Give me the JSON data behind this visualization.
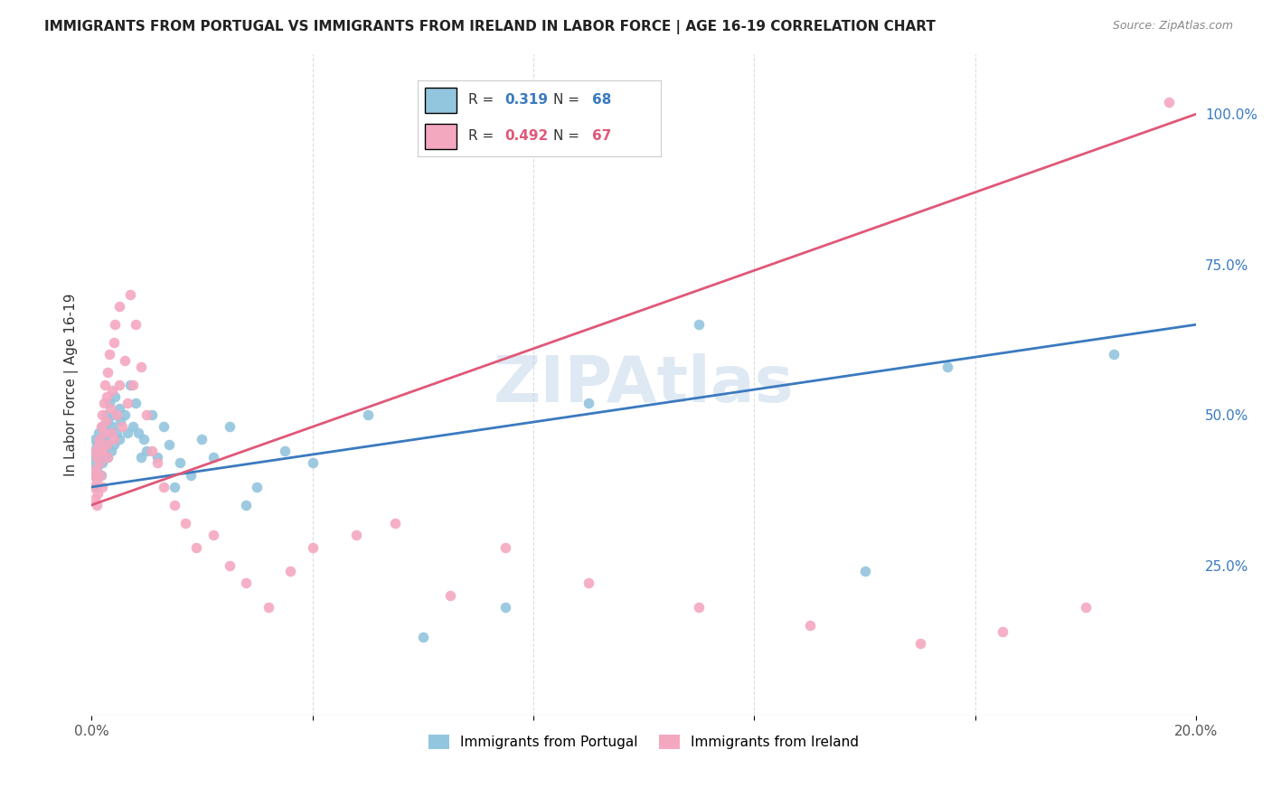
{
  "title": "IMMIGRANTS FROM PORTUGAL VS IMMIGRANTS FROM IRELAND IN LABOR FORCE | AGE 16-19 CORRELATION CHART",
  "source": "Source: ZipAtlas.com",
  "ylabel": "In Labor Force | Age 16-19",
  "xlim": [
    0.0,
    0.2
  ],
  "ylim": [
    0.0,
    1.1
  ],
  "portugal_color": "#92c5de",
  "ireland_color": "#f4a8c0",
  "portugal_line_color": "#3a7abf",
  "ireland_line_color": "#e05878",
  "R_portugal": 0.319,
  "N_portugal": 68,
  "R_ireland": 0.492,
  "N_ireland": 67,
  "watermark": "ZIPAtlas",
  "portugal_scatter_x": [
    0.0003,
    0.0005,
    0.0006,
    0.0007,
    0.0008,
    0.0009,
    0.001,
    0.001,
    0.0012,
    0.0013,
    0.0014,
    0.0015,
    0.0016,
    0.0017,
    0.0018,
    0.0019,
    0.002,
    0.002,
    0.0022,
    0.0023,
    0.0025,
    0.0026,
    0.0027,
    0.0028,
    0.003,
    0.003,
    0.0032,
    0.0034,
    0.0035,
    0.0037,
    0.004,
    0.004,
    0.0042,
    0.0045,
    0.005,
    0.005,
    0.0052,
    0.006,
    0.0065,
    0.007,
    0.0075,
    0.008,
    0.0085,
    0.009,
    0.0095,
    0.01,
    0.011,
    0.012,
    0.013,
    0.014,
    0.015,
    0.016,
    0.018,
    0.02,
    0.022,
    0.025,
    0.028,
    0.03,
    0.035,
    0.04,
    0.05,
    0.06,
    0.075,
    0.09,
    0.11,
    0.14,
    0.155,
    0.185
  ],
  "portugal_scatter_y": [
    0.42,
    0.44,
    0.4,
    0.46,
    0.43,
    0.38,
    0.45,
    0.41,
    0.43,
    0.47,
    0.42,
    0.44,
    0.46,
    0.4,
    0.43,
    0.45,
    0.48,
    0.42,
    0.44,
    0.46,
    0.43,
    0.5,
    0.47,
    0.45,
    0.49,
    0.43,
    0.52,
    0.47,
    0.44,
    0.48,
    0.5,
    0.45,
    0.53,
    0.47,
    0.51,
    0.46,
    0.49,
    0.5,
    0.47,
    0.55,
    0.48,
    0.52,
    0.47,
    0.43,
    0.46,
    0.44,
    0.5,
    0.43,
    0.48,
    0.45,
    0.38,
    0.42,
    0.4,
    0.46,
    0.43,
    0.48,
    0.35,
    0.38,
    0.44,
    0.42,
    0.5,
    0.13,
    0.18,
    0.52,
    0.65,
    0.24,
    0.58,
    0.6
  ],
  "ireland_scatter_x": [
    0.0003,
    0.0005,
    0.0006,
    0.0007,
    0.0008,
    0.0009,
    0.001,
    0.001,
    0.0012,
    0.0013,
    0.0014,
    0.0015,
    0.0016,
    0.0017,
    0.0018,
    0.0019,
    0.002,
    0.002,
    0.0022,
    0.0023,
    0.0025,
    0.0026,
    0.0027,
    0.0028,
    0.003,
    0.003,
    0.0032,
    0.0034,
    0.0035,
    0.0037,
    0.004,
    0.004,
    0.0042,
    0.0045,
    0.005,
    0.005,
    0.0055,
    0.006,
    0.0065,
    0.007,
    0.0075,
    0.008,
    0.009,
    0.01,
    0.011,
    0.012,
    0.013,
    0.015,
    0.017,
    0.019,
    0.022,
    0.025,
    0.028,
    0.032,
    0.036,
    0.04,
    0.048,
    0.055,
    0.065,
    0.075,
    0.09,
    0.11,
    0.13,
    0.15,
    0.165,
    0.18,
    0.195
  ],
  "ireland_scatter_y": [
    0.38,
    0.4,
    0.36,
    0.44,
    0.41,
    0.35,
    0.43,
    0.39,
    0.37,
    0.45,
    0.42,
    0.46,
    0.4,
    0.44,
    0.48,
    0.38,
    0.5,
    0.44,
    0.52,
    0.47,
    0.55,
    0.49,
    0.53,
    0.45,
    0.57,
    0.43,
    0.6,
    0.51,
    0.47,
    0.54,
    0.62,
    0.46,
    0.65,
    0.5,
    0.68,
    0.55,
    0.48,
    0.59,
    0.52,
    0.7,
    0.55,
    0.65,
    0.58,
    0.5,
    0.44,
    0.42,
    0.38,
    0.35,
    0.32,
    0.28,
    0.3,
    0.25,
    0.22,
    0.18,
    0.24,
    0.28,
    0.3,
    0.32,
    0.2,
    0.28,
    0.22,
    0.18,
    0.15,
    0.12,
    0.14,
    0.18,
    1.02
  ]
}
